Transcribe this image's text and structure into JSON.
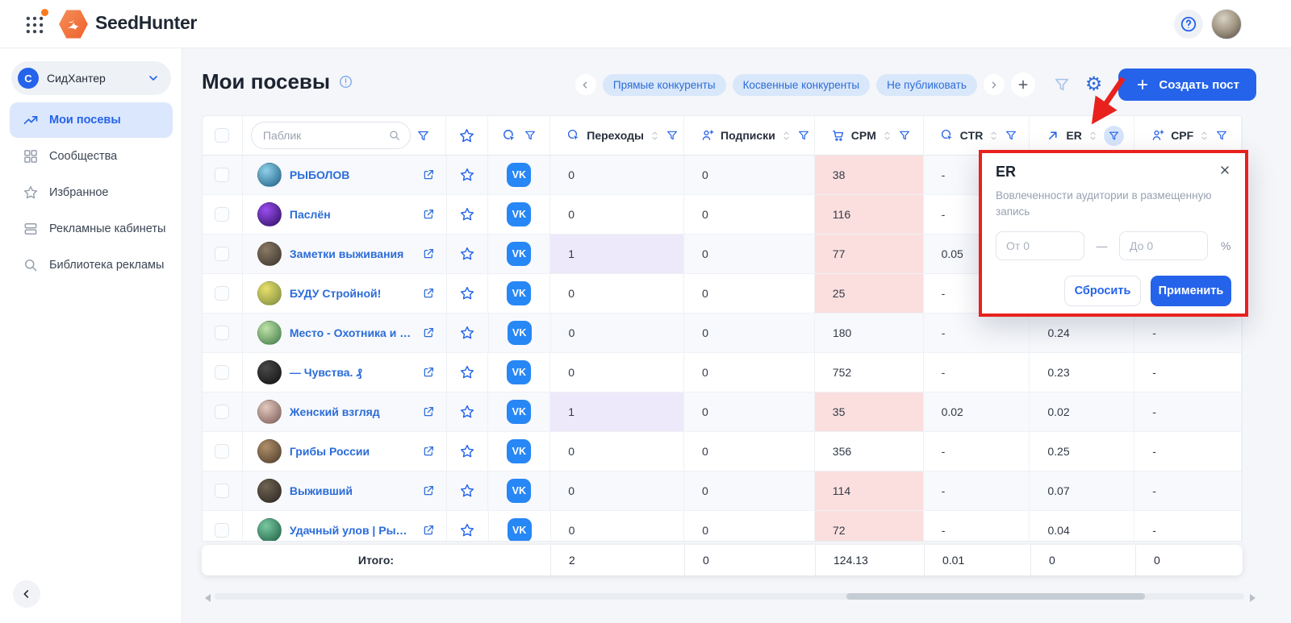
{
  "topbar": {
    "brand": "SeedHunter"
  },
  "sidebar": {
    "workspace": {
      "initial": "С",
      "name": "СидХантер"
    },
    "items": [
      {
        "label": "Мои посевы",
        "icon": "trending-up-icon",
        "active": true
      },
      {
        "label": "Сообщества",
        "icon": "grid-icon",
        "active": false
      },
      {
        "label": "Избранное",
        "icon": "star-icon",
        "active": false
      },
      {
        "label": "Рекламные кабинеты",
        "icon": "cards-icon",
        "active": false
      },
      {
        "label": "Библиотека рекламы",
        "icon": "search-icon",
        "active": false
      }
    ]
  },
  "page": {
    "title": "Мои посевы",
    "tags": [
      "Прямые конкуренты",
      "Косвенные конкуренты",
      "Не публиковать"
    ],
    "create_post": "Создать пост"
  },
  "table": {
    "search_placeholder": "Паблик",
    "columns": [
      {
        "key": "perehody",
        "label": "Переходы",
        "icon": "click-icon",
        "filter_active": false
      },
      {
        "key": "podpiski",
        "label": "Подписки",
        "icon": "person-plus-icon",
        "filter_active": false
      },
      {
        "key": "cpm",
        "label": "CPM",
        "icon": "cart-icon",
        "filter_active": false
      },
      {
        "key": "ctr",
        "label": "CTR",
        "icon": "click-icon",
        "filter_active": false
      },
      {
        "key": "er",
        "label": "ER",
        "icon": "arrow-up-right-icon",
        "filter_active": true
      },
      {
        "key": "cpf",
        "label": "CPF",
        "icon": "person-plus-icon",
        "filter_active": false
      }
    ],
    "rows": [
      {
        "name": "РЫБОЛОВ",
        "avatar": [
          "#8fd0e8",
          "#1f5f86"
        ],
        "perehody": "0",
        "perehody_hl": false,
        "podpiski": "0",
        "cpm": "38",
        "cpm_hl": true,
        "ctr": "-",
        "er": "",
        "cpf": ""
      },
      {
        "name": "Паслён",
        "avatar": [
          "#9b4df0",
          "#2e1060"
        ],
        "perehody": "0",
        "perehody_hl": false,
        "podpiski": "0",
        "cpm": "116",
        "cpm_hl": true,
        "ctr": "-",
        "er": "",
        "cpf": ""
      },
      {
        "name": "Заметки выживания",
        "avatar": [
          "#8a7a66",
          "#3b342b"
        ],
        "perehody": "1",
        "perehody_hl": true,
        "podpiski": "0",
        "cpm": "77",
        "cpm_hl": true,
        "ctr": "0.05",
        "er": "",
        "cpf": ""
      },
      {
        "name": "БУДУ Стройной!",
        "avatar": [
          "#e8e06a",
          "#7c8a3e"
        ],
        "perehody": "0",
        "perehody_hl": false,
        "podpiski": "0",
        "cpm": "25",
        "cpm_hl": true,
        "ctr": "-",
        "er": "",
        "cpf": ""
      },
      {
        "name": "Место - Охотника и Р...",
        "avatar": [
          "#bfe3a8",
          "#3f7a46"
        ],
        "perehody": "0",
        "perehody_hl": false,
        "podpiski": "0",
        "cpm": "180",
        "cpm_hl": false,
        "ctr": "-",
        "er": "0.24",
        "cpf": "-"
      },
      {
        "name": "— Чувства. ₰",
        "avatar": [
          "#4a4a4a",
          "#101010"
        ],
        "perehody": "0",
        "perehody_hl": false,
        "podpiski": "0",
        "cpm": "752",
        "cpm_hl": false,
        "ctr": "-",
        "er": "0.23",
        "cpf": "-"
      },
      {
        "name": "Женский взгляд",
        "avatar": [
          "#e3c9c0",
          "#7b5a55"
        ],
        "perehody": "1",
        "perehody_hl": true,
        "podpiski": "0",
        "cpm": "35",
        "cpm_hl": true,
        "ctr": "0.02",
        "er": "0.02",
        "cpf": "-"
      },
      {
        "name": "Грибы России",
        "avatar": [
          "#b08f6a",
          "#4e3c2a"
        ],
        "perehody": "0",
        "perehody_hl": false,
        "podpiski": "0",
        "cpm": "356",
        "cpm_hl": false,
        "ctr": "-",
        "er": "0.25",
        "cpf": "-"
      },
      {
        "name": "Выживший",
        "avatar": [
          "#6f6454",
          "#2c2620"
        ],
        "perehody": "0",
        "perehody_hl": false,
        "podpiski": "0",
        "cpm": "114",
        "cpm_hl": true,
        "ctr": "-",
        "er": "0.07",
        "cpf": "-"
      },
      {
        "name": "Удачный улов | Рыбак...",
        "avatar": [
          "#79c9a2",
          "#1d5e43"
        ],
        "perehody": "0",
        "perehody_hl": false,
        "podpiski": "0",
        "cpm": "72",
        "cpm_hl": true,
        "ctr": "-",
        "er": "0.04",
        "cpf": "-"
      }
    ],
    "totals": {
      "label": "Итого:",
      "perehody": "2",
      "podpiski": "0",
      "cpm": "124.13",
      "ctr": "0.01",
      "er": "0",
      "cpf": "0"
    }
  },
  "filter_popup": {
    "title": "ER",
    "description": "Вовлеченности аудитории в размещенную запись",
    "from_placeholder": "От 0",
    "to_placeholder": "До 0",
    "dash": "—",
    "unit": "%",
    "reset_label": "Сбросить",
    "apply_label": "Применить"
  },
  "colors": {
    "accent": "#2563eb",
    "vk": "#2787f5",
    "pink_highlight": "#fbdfdf",
    "purple_highlight": "#ede9fb",
    "annotation_red": "#e8211d",
    "chip_bg": "#d9e7fa"
  }
}
